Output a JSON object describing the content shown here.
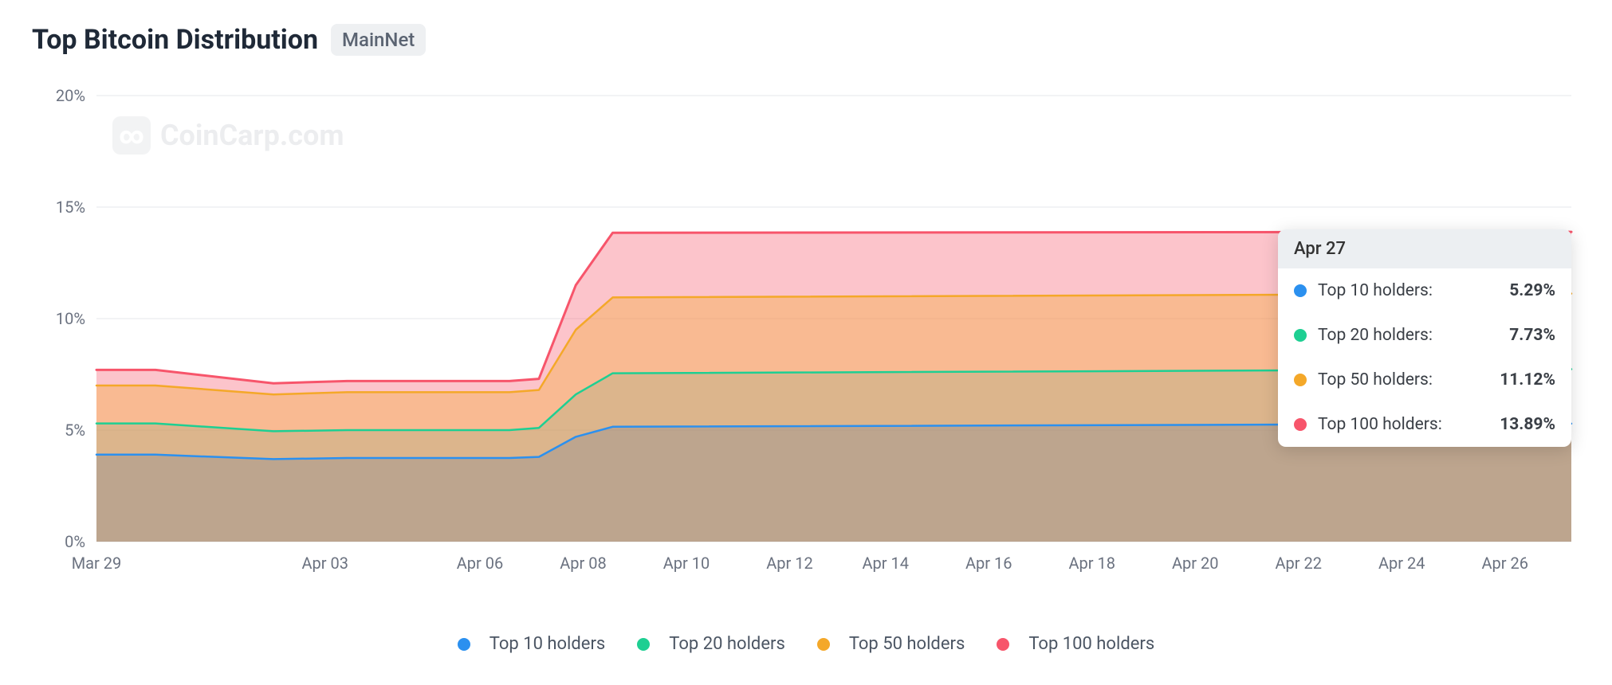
{
  "header": {
    "title": "Top Bitcoin Distribution",
    "badge": "MainNet"
  },
  "watermark": {
    "icon_glyph": "∞",
    "text": "CoinCarp.com"
  },
  "chart": {
    "type": "area",
    "background_color": "#ffffff",
    "grid_color": "#e5e7eb",
    "axis_label_color": "#6b7280",
    "axis_label_fontsize": 20,
    "y": {
      "min": 0,
      "max": 20,
      "tick_step": 5,
      "ticks": [
        "0%",
        "5%",
        "10%",
        "15%",
        "20%"
      ]
    },
    "x": {
      "labels": [
        "Mar 29",
        "Apr 03",
        "Apr 06",
        "Apr 08",
        "Apr 10",
        "Apr 12",
        "Apr 14",
        "Apr 16",
        "Apr 18",
        "Apr 20",
        "Apr 22",
        "Apr 24",
        "Apr 26"
      ],
      "positions": [
        0,
        0.155,
        0.26,
        0.33,
        0.4,
        0.47,
        0.535,
        0.605,
        0.675,
        0.745,
        0.815,
        0.885,
        0.955
      ]
    },
    "x_dense": [
      0,
      0.04,
      0.12,
      0.17,
      0.22,
      0.25,
      0.28,
      0.3,
      0.325,
      0.35,
      1.0
    ],
    "series": [
      {
        "key": "top100",
        "label": "Top 100 holders",
        "stroke": "#f7556b",
        "fill": "rgba(247,85,107,0.35)",
        "line_width": 3,
        "values": [
          7.7,
          7.7,
          7.1,
          7.2,
          7.2,
          7.2,
          7.2,
          7.3,
          11.5,
          13.85,
          13.89
        ]
      },
      {
        "key": "top50",
        "label": "Top 50 holders",
        "stroke": "#f4a829",
        "fill": "rgba(244,168,41,0.35)",
        "line_width": 2.5,
        "values": [
          7.0,
          7.0,
          6.6,
          6.7,
          6.7,
          6.7,
          6.7,
          6.8,
          9.5,
          10.95,
          11.12
        ]
      },
      {
        "key": "top20",
        "label": "Top 20 holders",
        "stroke": "#1ecf92",
        "fill": "rgba(165,173,130,0.35)",
        "line_width": 2.5,
        "values": [
          5.3,
          5.3,
          4.95,
          5.0,
          5.0,
          5.0,
          5.0,
          5.1,
          6.6,
          7.55,
          7.73
        ]
      },
      {
        "key": "top10",
        "label": "Top 10 holders",
        "stroke": "#2b90ef",
        "fill": "rgba(120,130,150,0.30)",
        "line_width": 2.5,
        "values": [
          3.9,
          3.9,
          3.7,
          3.75,
          3.75,
          3.75,
          3.75,
          3.8,
          4.7,
          5.15,
          5.29
        ]
      }
    ]
  },
  "tooltip": {
    "date": "Apr 27",
    "rows": [
      {
        "color": "#2b90ef",
        "label": "Top 10 holders:",
        "value": "5.29%"
      },
      {
        "color": "#1ecf92",
        "label": "Top 20 holders:",
        "value": "7.73%"
      },
      {
        "color": "#f4a829",
        "label": "Top 50 holders:",
        "value": "11.12%"
      },
      {
        "color": "#f7556b",
        "label": "Top 100 holders:",
        "value": "13.89%"
      }
    ]
  },
  "legend": [
    {
      "color": "#2b90ef",
      "label": "Top 10 holders"
    },
    {
      "color": "#1ecf92",
      "label": "Top 20 holders"
    },
    {
      "color": "#f4a829",
      "label": "Top 50 holders"
    },
    {
      "color": "#f7556b",
      "label": "Top 100 holders"
    }
  ]
}
